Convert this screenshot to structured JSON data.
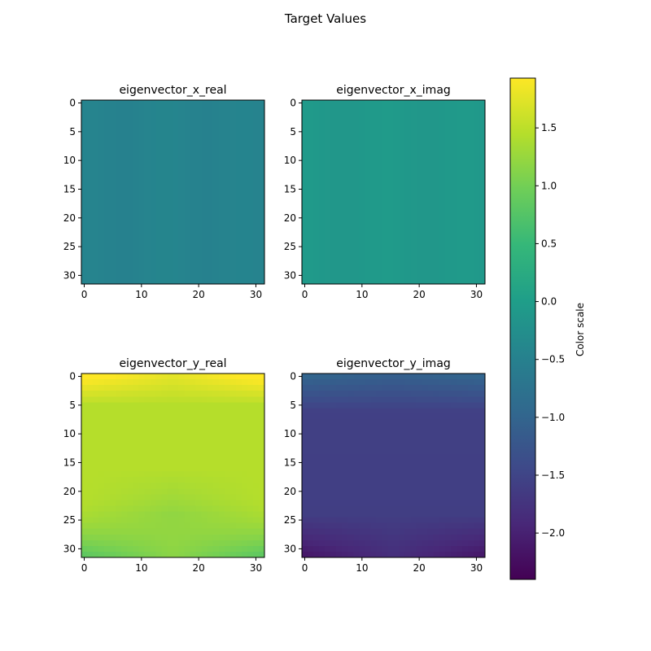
{
  "figure": {
    "title": "Target Values"
  },
  "colorbar": {
    "label": "Color scale",
    "range": [
      -2.4,
      1.93
    ],
    "ticks": [
      1.5,
      1.0,
      0.5,
      0.0,
      -0.5,
      -1.0,
      -1.5,
      -2.0
    ],
    "tick_labels": [
      "1.5",
      "1.0",
      "0.5",
      "0.0",
      "−0.5",
      "−1.0",
      "−1.5",
      "−2.0"
    ]
  },
  "chart_data": [
    {
      "type": "heatmap",
      "title": "eigenvector_x_real",
      "grid_size": 32,
      "xlim": [
        -0.5,
        31.5
      ],
      "ylim": [
        31.5,
        -0.5
      ],
      "xticks": [
        0,
        10,
        20,
        30
      ],
      "yticks": [
        0,
        5,
        10,
        15,
        20,
        25,
        30
      ],
      "value_model": {
        "base": -0.45,
        "amplitude": 0.03,
        "pattern": "columns"
      }
    },
    {
      "type": "heatmap",
      "title": "eigenvector_x_imag",
      "grid_size": 32,
      "xlim": [
        -0.5,
        31.5
      ],
      "ylim": [
        31.5,
        -0.5
      ],
      "xticks": [
        0,
        10,
        20,
        30
      ],
      "yticks": [
        0,
        5,
        10,
        15,
        20,
        25,
        30
      ],
      "value_model": {
        "base": -0.08,
        "amplitude": 0.03,
        "pattern": "columns"
      }
    },
    {
      "type": "heatmap",
      "title": "eigenvector_y_real",
      "grid_size": 32,
      "xlim": [
        -0.5,
        31.5
      ],
      "ylim": [
        31.5,
        -0.5
      ],
      "xticks": [
        0,
        10,
        20,
        30
      ],
      "yticks": [
        0,
        5,
        10,
        15,
        20,
        25,
        30
      ],
      "value_model": {
        "base": 1.45,
        "top_corner": 1.9,
        "bottom_low": 0.35,
        "center_low": 1.2,
        "pattern": "y_real"
      }
    },
    {
      "type": "heatmap",
      "title": "eigenvector_y_imag",
      "grid_size": 32,
      "xlim": [
        -0.5,
        31.5
      ],
      "ylim": [
        31.5,
        -0.5
      ],
      "xticks": [
        0,
        10,
        20,
        30
      ],
      "yticks": [
        0,
        5,
        10,
        15,
        20,
        25,
        30
      ],
      "value_model": {
        "base": -1.55,
        "top": -1.05,
        "bottom_corner": -2.05,
        "pattern": "y_imag"
      }
    }
  ]
}
